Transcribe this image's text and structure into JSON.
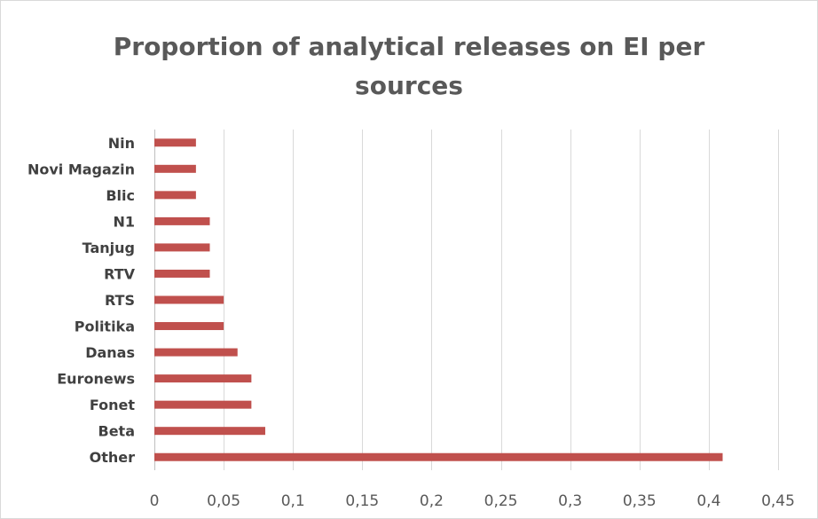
{
  "chart_data": {
    "type": "bar",
    "orientation": "horizontal",
    "title": "Proportion of analytical releases on EI per sources",
    "title_lines": [
      "Proportion of analytical releases on EI per",
      "sources"
    ],
    "categories": [
      "Nin",
      "Novi Magazin",
      "Blic",
      "N1",
      "Tanjug",
      "RTV",
      "RTS",
      "Politika",
      "Danas",
      "Euronews",
      "Fonet",
      "Beta",
      "Other"
    ],
    "values": [
      0.03,
      0.03,
      0.03,
      0.04,
      0.04,
      0.04,
      0.05,
      0.05,
      0.06,
      0.07,
      0.07,
      0.08,
      0.41
    ],
    "xlim": [
      0,
      0.45
    ],
    "x_ticks": [
      0,
      0.05,
      0.1,
      0.15,
      0.2,
      0.25,
      0.3,
      0.35,
      0.4,
      0.45
    ],
    "x_tick_labels": [
      "0",
      "0,05",
      "0,1",
      "0,15",
      "0,2",
      "0,25",
      "0,3",
      "0,35",
      "0,4",
      "0,45"
    ],
    "xlabel": "",
    "ylabel": "",
    "grid": "vertical",
    "legend": "none",
    "bar_color": "#c0504d"
  }
}
